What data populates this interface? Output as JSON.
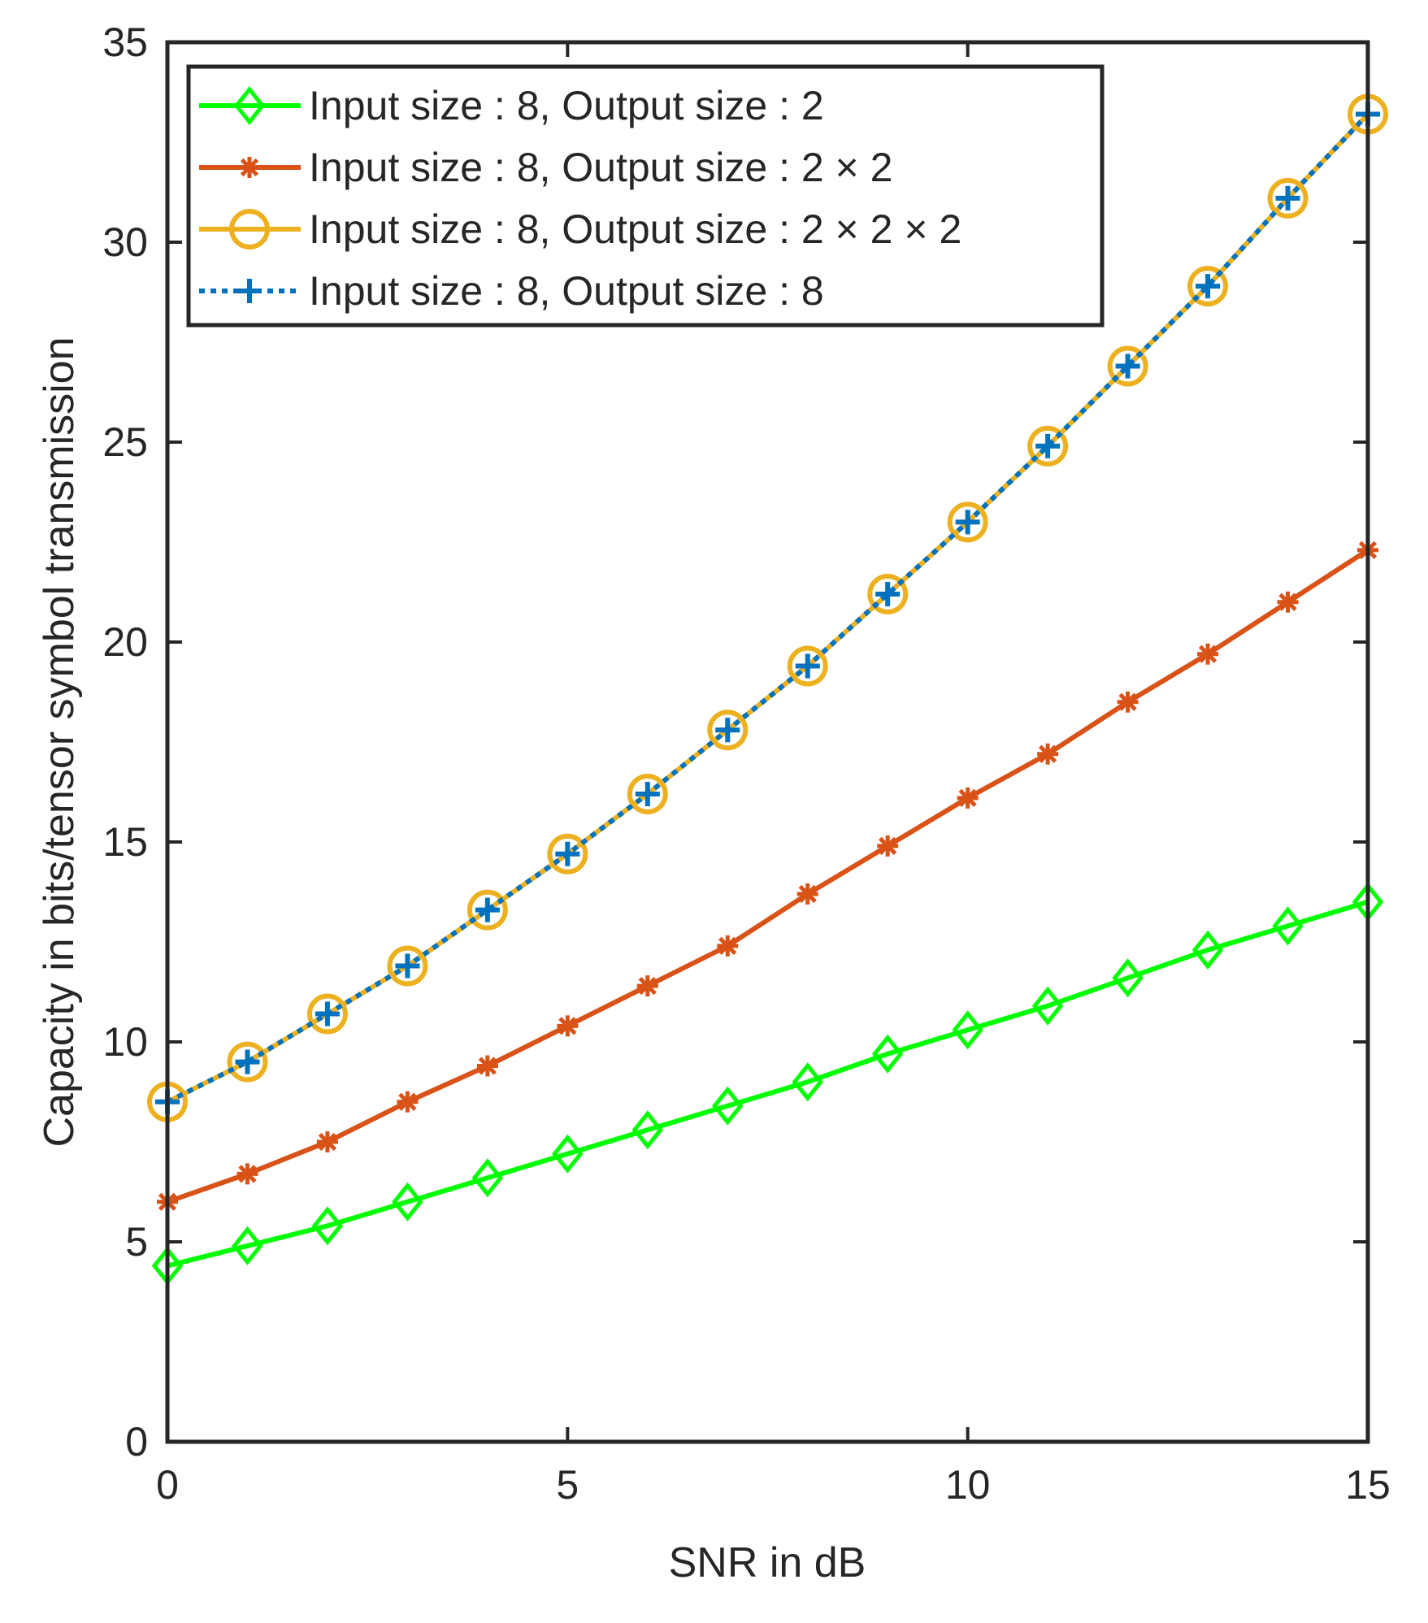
{
  "chart_data": {
    "type": "line",
    "title": "",
    "xlabel": "SNR in dB",
    "ylabel": "Capacity in bits/tensor symbol transmission",
    "xlim": [
      0,
      15
    ],
    "ylim": [
      0,
      35
    ],
    "xticks": [
      0,
      5,
      10,
      15
    ],
    "yticks": [
      0,
      5,
      10,
      15,
      20,
      25,
      30,
      35
    ],
    "grid": false,
    "legend_position": "top-left",
    "x": [
      0,
      1,
      2,
      3,
      4,
      5,
      6,
      7,
      8,
      9,
      10,
      11,
      12,
      13,
      14,
      15
    ],
    "series": [
      {
        "name": "Input size : 8, Output size : 2",
        "color": "#00ff00",
        "marker": "diamond",
        "line_style": "solid",
        "values": [
          4.4,
          4.9,
          5.4,
          6.0,
          6.6,
          7.2,
          7.8,
          8.4,
          9.0,
          9.7,
          10.3,
          10.9,
          11.6,
          12.3,
          12.9,
          13.5
        ]
      },
      {
        "name": "Input size : 8, Output size : 2 × 2",
        "color": "#d95319",
        "marker": "asterisk",
        "line_style": "solid",
        "values": [
          6.0,
          6.7,
          7.5,
          8.5,
          9.4,
          10.4,
          11.4,
          12.4,
          13.7,
          14.9,
          16.1,
          17.2,
          18.5,
          19.7,
          21.0,
          22.3
        ]
      },
      {
        "name": "Input size : 8, Output size : 2 × 2 × 2",
        "color": "#edb120",
        "marker": "circle",
        "line_style": "solid",
        "values": [
          8.5,
          9.5,
          10.7,
          11.9,
          13.3,
          14.7,
          16.2,
          17.8,
          19.4,
          21.2,
          23.0,
          24.9,
          26.9,
          28.9,
          31.1,
          33.2
        ]
      },
      {
        "name": "Input size : 8, Output size : 8",
        "color": "#0072bd",
        "marker": "plus",
        "line_style": "dotted",
        "values": [
          8.5,
          9.5,
          10.7,
          11.9,
          13.3,
          14.7,
          16.2,
          17.8,
          19.4,
          21.2,
          23.0,
          24.9,
          26.9,
          28.9,
          31.1,
          33.2
        ]
      }
    ]
  }
}
